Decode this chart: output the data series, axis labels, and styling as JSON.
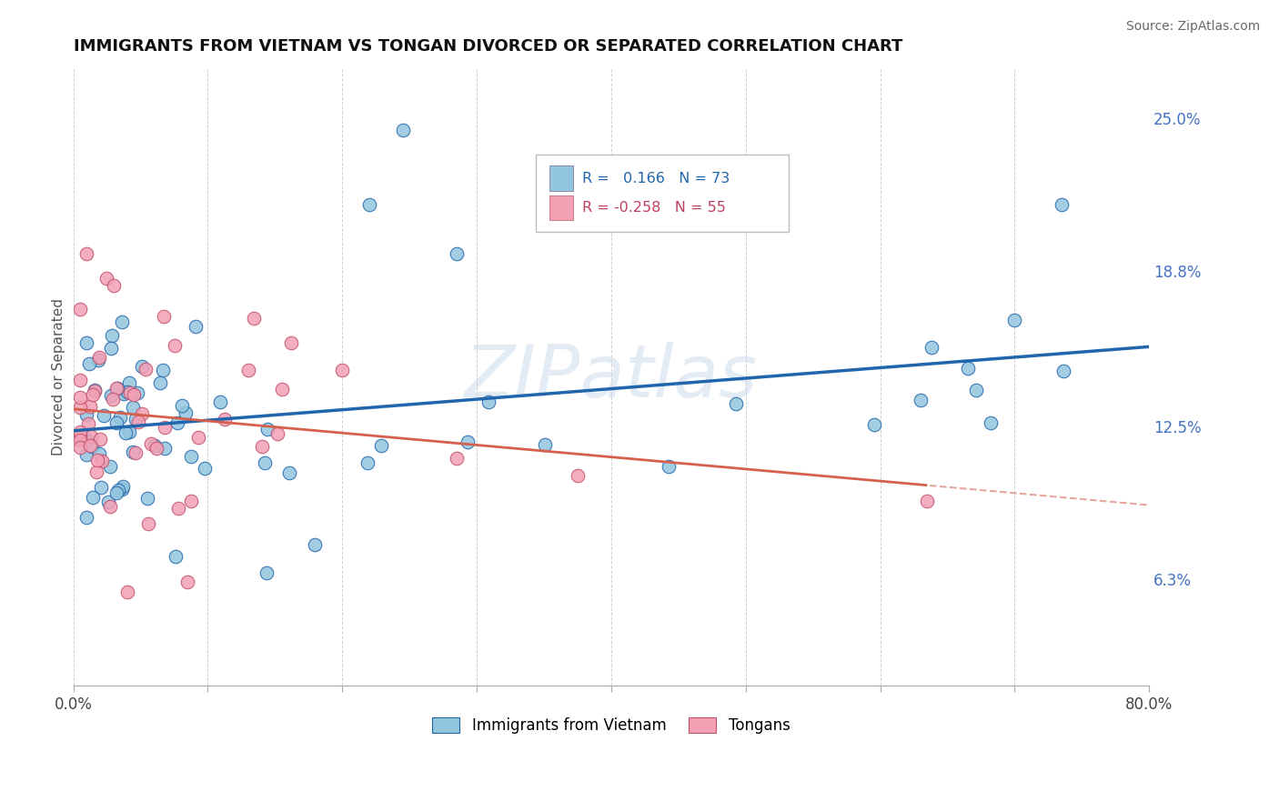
{
  "title": "IMMIGRANTS FROM VIETNAM VS TONGAN DIVORCED OR SEPARATED CORRELATION CHART",
  "source_text": "Source: ZipAtlas.com",
  "ylabel": "Divorced or Separated",
  "right_yticks": [
    0.063,
    0.125,
    0.188,
    0.25
  ],
  "right_yticklabels": [
    "6.3%",
    "12.5%",
    "18.8%",
    "25.0%"
  ],
  "xlim": [
    0.0,
    0.8
  ],
  "ylim": [
    0.02,
    0.27
  ],
  "watermark": "ZIPatlas",
  "blue_color": "#92c5de",
  "pink_color": "#f4a0b5",
  "blue_line_color": "#2166ac",
  "pink_line_color": "#d6604d",
  "blue_R": 0.166,
  "blue_N": 73,
  "pink_R": -0.258,
  "pink_N": 55,
  "title_fontsize": 13,
  "source_fontsize": 10
}
